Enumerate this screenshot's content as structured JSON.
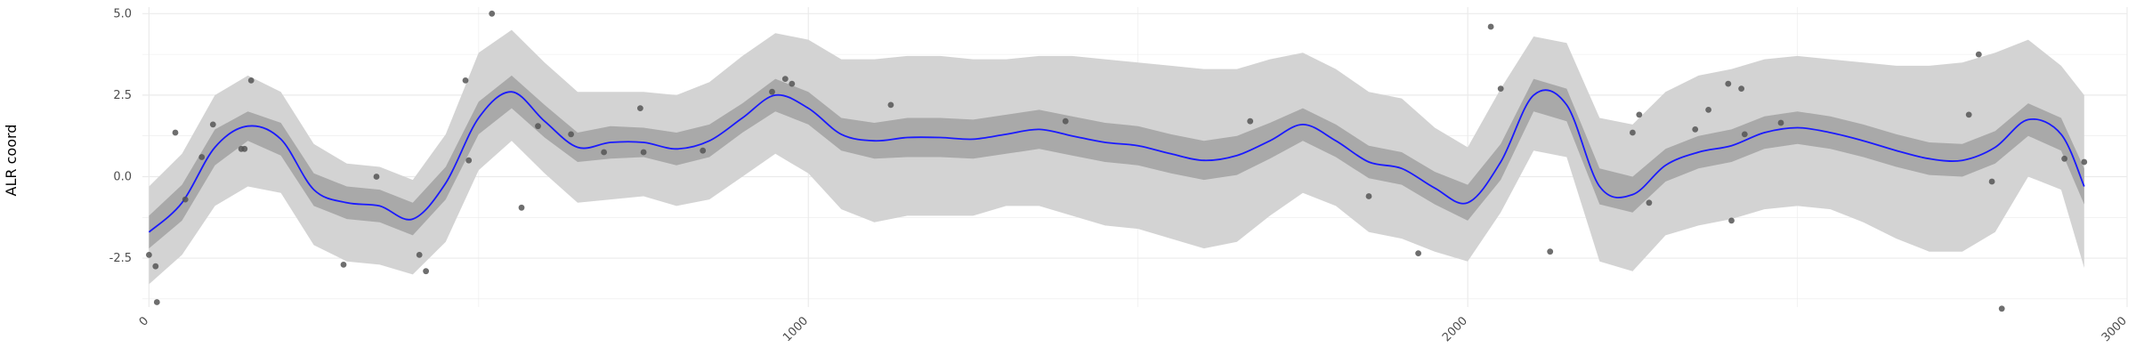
{
  "chart_data": {
    "type": "scatter",
    "title": "",
    "xlabel": "",
    "ylabel": "ALR coord",
    "xlim": [
      -10,
      3000
    ],
    "ylim": [
      -4.0,
      5.2
    ],
    "x_ticks": [
      0,
      1000,
      2000,
      3000
    ],
    "x_tick_labels": [
      "0",
      "1000",
      "2000",
      "3000"
    ],
    "x_minor_ticks": [
      500,
      1500,
      2500
    ],
    "y_ticks": [
      -2.5,
      0.0,
      2.5,
      5.0
    ],
    "y_tick_labels": [
      "-2.5",
      "0.0",
      "2.5",
      "5.0"
    ],
    "y_minor_ticks": [
      -3.75,
      -1.25,
      1.25,
      3.75
    ],
    "grid": true,
    "legend": "none",
    "colors": {
      "line": "#1a1aff",
      "inner_band": "#a9a9a9",
      "outer_band": "#d3d3d3",
      "points": "#555555",
      "grid": "#ebebeb"
    },
    "points": {
      "x": [
        0,
        10,
        12,
        40,
        55,
        80,
        97,
        140,
        145,
        155,
        295,
        345,
        410,
        420,
        480,
        485,
        520,
        565,
        590,
        640,
        690,
        745,
        750,
        840,
        945,
        965,
        975,
        1125,
        1390,
        1670,
        1850,
        1925,
        2035,
        2050,
        2125,
        2250,
        2260,
        2275,
        2345,
        2365,
        2395,
        2400,
        2415,
        2420,
        2475,
        2760,
        2775,
        2795,
        2810,
        2905,
        2935
      ],
      "y": [
        -2.4,
        -2.75,
        -3.85,
        1.35,
        -0.7,
        0.6,
        1.6,
        0.85,
        0.85,
        2.95,
        -2.7,
        0.0,
        -2.4,
        -2.9,
        2.95,
        0.5,
        5.0,
        -0.95,
        1.55,
        1.3,
        0.75,
        2.1,
        0.75,
        0.8,
        2.6,
        3.0,
        2.85,
        2.2,
        1.7,
        1.7,
        -0.6,
        -2.35,
        4.6,
        2.7,
        -2.3,
        1.35,
        1.9,
        -0.8,
        1.45,
        2.05,
        2.85,
        -1.35,
        2.7,
        1.3,
        1.65,
        1.9,
        3.75,
        -0.15,
        -4.05,
        0.55,
        0.45
      ]
    },
    "smooth": {
      "x": [
        0,
        50,
        100,
        150,
        200,
        250,
        300,
        350,
        400,
        450,
        500,
        550,
        600,
        650,
        700,
        750,
        800,
        850,
        900,
        950,
        1000,
        1050,
        1100,
        1150,
        1200,
        1250,
        1300,
        1350,
        1400,
        1450,
        1500,
        1550,
        1600,
        1650,
        1700,
        1750,
        1800,
        1850,
        1900,
        1950,
        2000,
        2050,
        2100,
        2150,
        2200,
        2250,
        2300,
        2350,
        2400,
        2450,
        2500,
        2550,
        2600,
        2650,
        2700,
        2750,
        2800,
        2850,
        2900,
        2935
      ],
      "y": [
        -1.7,
        -0.8,
        0.9,
        1.55,
        1.15,
        -0.4,
        -0.8,
        -0.9,
        -1.3,
        -0.2,
        1.8,
        2.6,
        1.7,
        0.9,
        1.05,
        1.05,
        0.85,
        1.1,
        1.8,
        2.5,
        2.1,
        1.3,
        1.1,
        1.2,
        1.2,
        1.15,
        1.3,
        1.45,
        1.25,
        1.05,
        0.95,
        0.7,
        0.5,
        0.65,
        1.1,
        1.6,
        1.1,
        0.45,
        0.25,
        -0.35,
        -0.8,
        0.45,
        2.5,
        2.2,
        -0.3,
        -0.55,
        0.35,
        0.75,
        0.95,
        1.35,
        1.5,
        1.35,
        1.1,
        0.8,
        0.55,
        0.5,
        0.9,
        1.75,
        1.3,
        -0.3
      ],
      "inner_lo": [
        -2.2,
        -1.35,
        0.35,
        1.1,
        0.65,
        -0.9,
        -1.3,
        -1.4,
        -1.8,
        -0.7,
        1.3,
        2.1,
        1.2,
        0.45,
        0.55,
        0.6,
        0.35,
        0.6,
        1.35,
        2.0,
        1.6,
        0.8,
        0.55,
        0.6,
        0.6,
        0.55,
        0.7,
        0.85,
        0.65,
        0.45,
        0.35,
        0.1,
        -0.1,
        0.05,
        0.55,
        1.1,
        0.6,
        -0.05,
        -0.25,
        -0.85,
        -1.35,
        -0.1,
        2.0,
        1.7,
        -0.85,
        -1.1,
        -0.15,
        0.25,
        0.45,
        0.85,
        1.0,
        0.85,
        0.6,
        0.3,
        0.05,
        0.0,
        0.4,
        1.25,
        0.8,
        -0.85
      ],
      "inner_hi": [
        -1.2,
        -0.25,
        1.45,
        2.0,
        1.65,
        0.1,
        -0.3,
        -0.4,
        -0.8,
        0.3,
        2.3,
        3.1,
        2.2,
        1.35,
        1.55,
        1.5,
        1.35,
        1.6,
        2.25,
        3.0,
        2.6,
        1.8,
        1.65,
        1.8,
        1.8,
        1.75,
        1.9,
        2.05,
        1.85,
        1.65,
        1.55,
        1.3,
        1.1,
        1.25,
        1.65,
        2.1,
        1.6,
        0.95,
        0.75,
        0.15,
        -0.25,
        1.0,
        3.0,
        2.7,
        0.25,
        0.0,
        0.85,
        1.25,
        1.45,
        1.85,
        2.0,
        1.85,
        1.6,
        1.3,
        1.05,
        1.0,
        1.4,
        2.25,
        1.8,
        0.25
      ],
      "outer_lo": [
        -3.3,
        -2.4,
        -0.9,
        -0.3,
        -0.5,
        -2.1,
        -2.6,
        -2.7,
        -3.0,
        -2.0,
        0.2,
        1.1,
        0.1,
        -0.8,
        -0.7,
        -0.6,
        -0.9,
        -0.7,
        0.0,
        0.7,
        0.1,
        -1.0,
        -1.4,
        -1.2,
        -1.2,
        -1.2,
        -0.9,
        -0.9,
        -1.2,
        -1.5,
        -1.6,
        -1.9,
        -2.2,
        -2.0,
        -1.2,
        -0.5,
        -0.9,
        -1.7,
        -1.9,
        -2.3,
        -2.6,
        -1.1,
        0.8,
        0.6,
        -2.6,
        -2.9,
        -1.8,
        -1.5,
        -1.3,
        -1.0,
        -0.9,
        -1.0,
        -1.4,
        -1.9,
        -2.3,
        -2.3,
        -1.7,
        0.0,
        -0.4,
        -2.8
      ],
      "outer_hi": [
        -0.3,
        0.7,
        2.5,
        3.1,
        2.6,
        1.0,
        0.4,
        0.3,
        -0.1,
        1.3,
        3.8,
        4.5,
        3.5,
        2.6,
        2.6,
        2.6,
        2.5,
        2.9,
        3.7,
        4.4,
        4.2,
        3.6,
        3.6,
        3.7,
        3.7,
        3.6,
        3.6,
        3.7,
        3.7,
        3.6,
        3.5,
        3.4,
        3.3,
        3.3,
        3.6,
        3.8,
        3.3,
        2.6,
        2.4,
        1.5,
        0.9,
        2.7,
        4.3,
        4.1,
        1.8,
        1.6,
        2.6,
        3.1,
        3.3,
        3.6,
        3.7,
        3.6,
        3.5,
        3.4,
        3.4,
        3.5,
        3.8,
        4.2,
        3.4,
        2.5
      ]
    }
  }
}
